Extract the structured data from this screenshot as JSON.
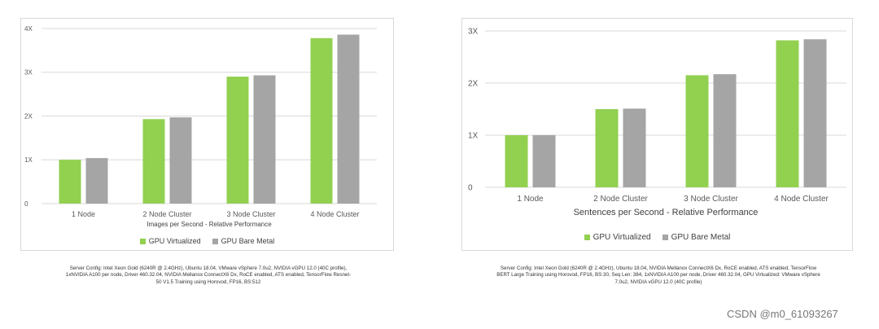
{
  "colors": {
    "virtualized": "#92D050",
    "bare_metal": "#A5A5A5",
    "grid": "#D9D9D9",
    "axis_text": "#595959"
  },
  "chart_data": [
    {
      "type": "bar",
      "categories": [
        "1 Node",
        "2 Node Cluster",
        "3 Node Cluster",
        "4 Node Cluster"
      ],
      "series": [
        {
          "name": "GPU Virtualized",
          "values": [
            1.0,
            1.93,
            2.9,
            3.78
          ]
        },
        {
          "name": "GPU Bare Metal",
          "values": [
            1.04,
            1.97,
            2.93,
            3.86
          ]
        }
      ],
      "xlabel": "Images per Second - Relative Performance",
      "ylabel": "",
      "ylim": [
        0,
        4
      ],
      "yticks": [
        {
          "v": 0,
          "label": "0"
        },
        {
          "v": 1,
          "label": "1X"
        },
        {
          "v": 2,
          "label": "2X"
        },
        {
          "v": 3,
          "label": "3X"
        },
        {
          "v": 4,
          "label": "4X"
        }
      ],
      "grid": true,
      "legend": "bottom-center"
    },
    {
      "type": "bar",
      "categories": [
        "1 Node",
        "2 Node Cluster",
        "3 Node Cluster",
        "4 Node Cluster"
      ],
      "series": [
        {
          "name": "GPU Virtualized",
          "values": [
            1.0,
            1.5,
            2.15,
            2.82
          ]
        },
        {
          "name": "GPU Bare Metal",
          "values": [
            1.0,
            1.51,
            2.17,
            2.84
          ]
        }
      ],
      "xlabel": "Sentences per Second - Relative Performance",
      "ylabel": "",
      "ylim": [
        0,
        3
      ],
      "yticks": [
        {
          "v": 0,
          "label": "0"
        },
        {
          "v": 1,
          "label": "1X"
        },
        {
          "v": 2,
          "label": "2X"
        },
        {
          "v": 3,
          "label": "3X"
        }
      ],
      "grid": true,
      "legend": "bottom-center"
    }
  ],
  "captions": [
    {
      "line1": "Server Config: Intel Xeon Gold (6240R @ 2.4GHz), Ubuntu 18.04, VMware vSphere 7.0u2, NVIDIA vGPU 12.0 (40C profile),",
      "line2": "1xNVIDIA A100 per node, Driver 460.32.04, NVIDIA Mellanox ConnectX6 Dx, RoCE enabled, ATS enabled, TensorFlow Resnet-",
      "line3": "50 V1.5 Training using Horovod, FP16, BS:512"
    },
    {
      "line1": "Server Config: Intel Xeon Gold (6240R @ 2.4GHz), Ubuntu 18.04, NVIDIA Mellanox ConnectX6 Dx, RoCE enabled, ATS enabled, TensorFlow",
      "line2": "BERT Large Training using Horovod, FP16, BS:30, Seq Len: 384, 1xNVIDIA A100 per node, Driver 460.32.04, GPU Virtualized: VMware vSphere",
      "line3": "7.0u2, NVIDIA vGPU 12.0 (40C profile)"
    }
  ],
  "watermark": "CSDN @m0_61093267"
}
